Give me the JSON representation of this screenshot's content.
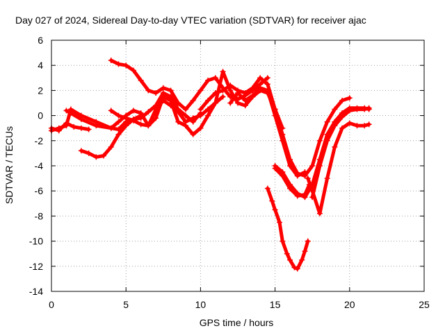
{
  "chart_data": {
    "type": "scatter",
    "title": "Day 027 of 2024, Sidereal Day-to-day VTEC variation (SDTVAR) for receiver ajac",
    "xlabel": "GPS time / hours",
    "ylabel": "SDTVAR / TECUs",
    "xlim": [
      0,
      25
    ],
    "ylim": [
      -14,
      6
    ],
    "xticks": [
      0,
      5,
      10,
      15,
      20,
      25
    ],
    "yticks": [
      -14,
      -12,
      -10,
      -8,
      -6,
      -4,
      -2,
      0,
      2,
      4,
      6
    ],
    "grid": true,
    "marker": "plus",
    "color": "#ff0000",
    "series": [
      {
        "points": [
          [
            0.0,
            -1.2
          ],
          [
            0.5,
            -1.0
          ],
          [
            1.0,
            -0.8
          ],
          [
            1.3,
            0.5
          ],
          [
            2.0,
            0.0
          ],
          [
            3.0,
            -0.5
          ],
          [
            4.0,
            -1.0
          ],
          [
            4.5,
            -1.1
          ],
          [
            5.0,
            -0.5
          ],
          [
            5.5,
            -0.3
          ],
          [
            6.0,
            -0.2
          ],
          [
            6.5,
            0.3
          ],
          [
            7.0,
            0.8
          ],
          [
            7.5,
            1.8
          ],
          [
            8.0,
            1.5
          ],
          [
            8.5,
            0.5
          ],
          [
            9.0,
            0.0
          ],
          [
            9.5,
            -0.5
          ],
          [
            10.0,
            0.2
          ]
        ]
      },
      {
        "points": [
          [
            0.0,
            -1.0
          ],
          [
            0.5,
            -1.2
          ],
          [
            1.0,
            -0.6
          ],
          [
            1.5,
            -0.9
          ],
          [
            2.0,
            -1.0
          ],
          [
            2.5,
            -1.1
          ]
        ]
      },
      {
        "points": [
          [
            1.0,
            0.4
          ],
          [
            2.0,
            -0.3
          ],
          [
            3.0,
            -0.8
          ],
          [
            4.0,
            -1.0
          ],
          [
            4.5,
            -0.5
          ],
          [
            5.0,
            0.0
          ],
          [
            5.5,
            0.4
          ],
          [
            6.0,
            0.2
          ],
          [
            6.5,
            -0.8
          ],
          [
            7.0,
            -0.2
          ],
          [
            7.5,
            1.5
          ],
          [
            8.0,
            1.2
          ]
        ]
      },
      {
        "points": [
          [
            2.0,
            -2.8
          ],
          [
            2.5,
            -3.0
          ],
          [
            3.0,
            -3.3
          ],
          [
            3.5,
            -3.2
          ],
          [
            4.0,
            -2.5
          ],
          [
            4.5,
            -1.5
          ],
          [
            5.0,
            -0.8
          ],
          [
            5.5,
            -0.3
          ],
          [
            6.0,
            0.0
          ]
        ]
      },
      {
        "points": [
          [
            4.0,
            4.4
          ],
          [
            4.5,
            4.1
          ],
          [
            5.0,
            4.0
          ],
          [
            5.5,
            3.6
          ],
          [
            6.0,
            2.8
          ],
          [
            6.5,
            2.0
          ],
          [
            7.0,
            1.8
          ],
          [
            7.5,
            2.2
          ],
          [
            8.0,
            2.0
          ],
          [
            8.5,
            1.0
          ],
          [
            9.0,
            0.5
          ],
          [
            9.5,
            1.2
          ],
          [
            10.0,
            2.0
          ],
          [
            10.5,
            2.8
          ],
          [
            11.0,
            3.0
          ],
          [
            11.5,
            2.2
          ],
          [
            12.0,
            1.5
          ],
          [
            12.5,
            1.3
          ],
          [
            13.0,
            1.6
          ],
          [
            13.5,
            2.0
          ],
          [
            14.0,
            2.5
          ],
          [
            14.5,
            3.0
          ]
        ]
      },
      {
        "points": [
          [
            4.0,
            0.4
          ],
          [
            4.5,
            0.0
          ],
          [
            5.0,
            -0.2
          ],
          [
            5.5,
            -0.4
          ],
          [
            6.0,
            -0.7
          ],
          [
            6.5,
            -0.8
          ],
          [
            7.0,
            0.5
          ],
          [
            7.5,
            1.2
          ],
          [
            8.0,
            0.8
          ],
          [
            8.5,
            0.3
          ],
          [
            9.0,
            -0.5
          ],
          [
            9.5,
            -0.2
          ],
          [
            10.0,
            0.0
          ],
          [
            10.5,
            0.5
          ],
          [
            11.0,
            1.0
          ],
          [
            11.5,
            1.5
          ]
        ]
      },
      {
        "points": [
          [
            7.5,
            1.5
          ],
          [
            8.0,
            1.2
          ],
          [
            8.5,
            -0.5
          ],
          [
            9.0,
            -0.8
          ],
          [
            9.5,
            -1.5
          ],
          [
            10.0,
            -1.0
          ],
          [
            10.5,
            0.0
          ],
          [
            11.0,
            1.0
          ],
          [
            11.5,
            3.5
          ],
          [
            12.0,
            2.0
          ],
          [
            12.5,
            1.0
          ],
          [
            13.0,
            0.8
          ],
          [
            13.5,
            1.5
          ],
          [
            14.0,
            2.0
          ],
          [
            14.5,
            1.8
          ],
          [
            15.0,
            0.5
          ],
          [
            15.5,
            -1.5
          ],
          [
            16.0,
            -3.5
          ],
          [
            16.5,
            -4.6
          ],
          [
            17.0,
            -4.8
          ],
          [
            17.5,
            -4.0
          ],
          [
            18.0,
            -2.0
          ],
          [
            18.5,
            -0.5
          ],
          [
            19.0,
            0.5
          ],
          [
            19.5,
            1.2
          ],
          [
            20.0,
            1.4
          ]
        ]
      },
      {
        "points": [
          [
            10.0,
            0.5
          ],
          [
            10.5,
            1.2
          ],
          [
            11.0,
            1.8
          ],
          [
            11.5,
            2.0
          ],
          [
            12.0,
            2.4
          ],
          [
            12.5,
            2.0
          ],
          [
            13.0,
            1.8
          ],
          [
            13.5,
            2.2
          ],
          [
            14.0,
            3.0
          ],
          [
            14.5,
            2.5
          ],
          [
            15.0,
            0.5
          ],
          [
            15.5,
            -1.0
          ]
        ]
      },
      {
        "points": [
          [
            12.0,
            1.0
          ],
          [
            12.5,
            1.8
          ],
          [
            13.0,
            1.2
          ],
          [
            13.5,
            1.6
          ],
          [
            14.0,
            2.2
          ],
          [
            14.5,
            2.0
          ],
          [
            15.0,
            0.0
          ],
          [
            15.5,
            -2.0
          ],
          [
            16.0,
            -4.0
          ],
          [
            16.5,
            -4.8
          ],
          [
            17.0,
            -4.5
          ]
        ]
      },
      {
        "points": [
          [
            15.0,
            -4.0
          ],
          [
            15.5,
            -4.5
          ],
          [
            16.0,
            -5.5
          ],
          [
            16.5,
            -6.2
          ],
          [
            17.0,
            -6.5
          ],
          [
            17.5,
            -5.5
          ],
          [
            18.0,
            -3.5
          ],
          [
            18.5,
            -1.5
          ],
          [
            19.0,
            -0.5
          ],
          [
            19.5,
            0.2
          ],
          [
            20.0,
            0.6
          ],
          [
            20.5,
            0.6
          ],
          [
            21.0,
            0.6
          ],
          [
            21.3,
            0.5
          ]
        ]
      },
      {
        "points": [
          [
            15.0,
            -4.2
          ],
          [
            15.5,
            -4.8
          ],
          [
            16.0,
            -5.8
          ],
          [
            16.5,
            -6.4
          ],
          [
            17.0,
            -6.3
          ],
          [
            17.3,
            -5.5
          ]
        ]
      },
      {
        "points": [
          [
            17.2,
            -5.0
          ],
          [
            17.5,
            -6.0
          ],
          [
            18.0,
            -7.8
          ],
          [
            18.5,
            -5.0
          ],
          [
            19.0,
            -2.5
          ],
          [
            19.5,
            -1.0
          ],
          [
            20.0,
            -0.6
          ],
          [
            20.5,
            -0.8
          ],
          [
            21.0,
            -0.8
          ],
          [
            21.3,
            -0.7
          ]
        ]
      },
      {
        "points": [
          [
            17.5,
            -6.5
          ],
          [
            18.0,
            -4.0
          ],
          [
            18.5,
            -2.0
          ],
          [
            19.0,
            -0.8
          ],
          [
            19.5,
            -0.1
          ],
          [
            20.0,
            0.4
          ],
          [
            20.5,
            0.5
          ],
          [
            21.0,
            0.5
          ],
          [
            21.3,
            0.6
          ]
        ]
      },
      {
        "points": [
          [
            14.5,
            -5.8
          ],
          [
            14.8,
            -6.8
          ],
          [
            15.0,
            -7.5
          ],
          [
            15.3,
            -8.5
          ],
          [
            15.5,
            -10.0
          ],
          [
            15.8,
            -11.0
          ],
          [
            16.0,
            -11.5
          ],
          [
            16.3,
            -12.1
          ],
          [
            16.5,
            -12.2
          ],
          [
            16.8,
            -11.5
          ],
          [
            17.0,
            -10.8
          ],
          [
            17.2,
            -10.0
          ]
        ]
      }
    ]
  }
}
